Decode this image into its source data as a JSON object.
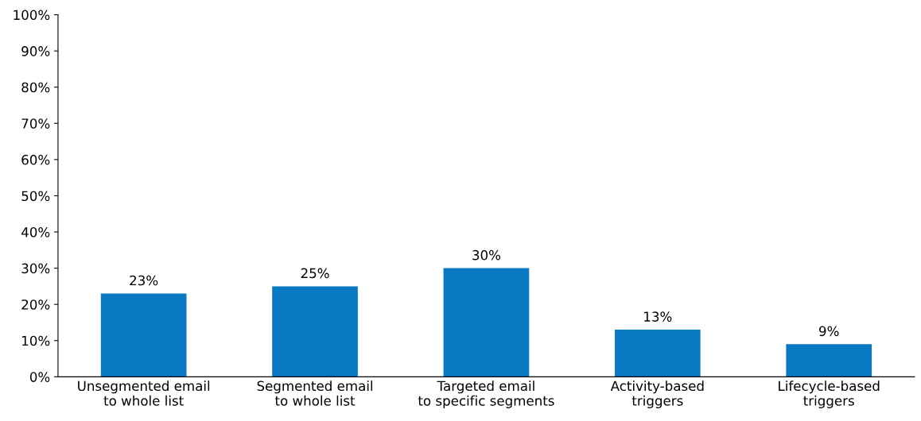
{
  "chart_data": {
    "type": "bar",
    "categories": [
      "Unsegmented email\nto whole list",
      "Segmented email\nto whole list",
      "Targeted email\nto specific segments",
      "Activity-based\ntriggers",
      "Lifecycle-based\ntriggers"
    ],
    "values": [
      23,
      25,
      30,
      13,
      9
    ],
    "value_labels": [
      "23%",
      "25%",
      "30%",
      "13%",
      "9%"
    ],
    "color": "#0a79c3",
    "ylim": [
      0,
      100
    ],
    "yticks": [
      {
        "value": 0,
        "label": "0%"
      },
      {
        "value": 10,
        "label": "10%"
      },
      {
        "value": 20,
        "label": "20%"
      },
      {
        "value": 30,
        "label": "30%"
      },
      {
        "value": 40,
        "label": "40%"
      },
      {
        "value": 50,
        "label": "50%"
      },
      {
        "value": 60,
        "label": "60%"
      },
      {
        "value": 70,
        "label": "70%"
      },
      {
        "value": 80,
        "label": "80%"
      },
      {
        "value": 90,
        "label": "90%"
      },
      {
        "value": 100,
        "label": "100%"
      }
    ],
    "grid": false
  }
}
